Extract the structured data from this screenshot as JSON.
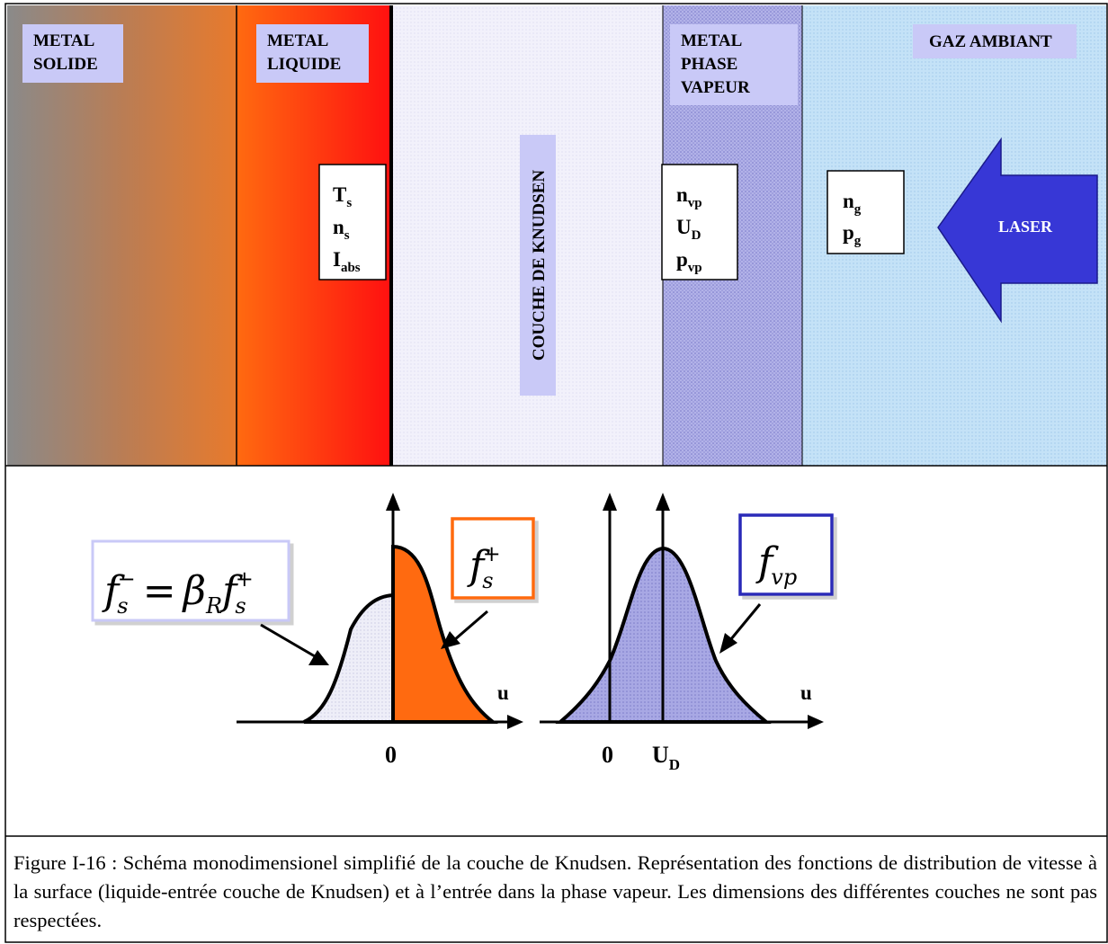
{
  "layers": {
    "solid": {
      "label_line1": "METAL",
      "label_line2": "SOLIDE"
    },
    "liquid": {
      "label_line1": "METAL",
      "label_line2": "LIQUIDE"
    },
    "knudsen": {
      "label": "COUCHE DE KNUDSEN"
    },
    "vapour": {
      "label_line1": "METAL",
      "label_line2": "PHASE",
      "label_line3": "VAPEUR"
    },
    "gas": {
      "label": "GAZ AMBIANT"
    }
  },
  "surface_vars": [
    {
      "base": "T",
      "sub": "s"
    },
    {
      "base": "n",
      "sub": "s"
    },
    {
      "base": "I",
      "sub": "abs"
    }
  ],
  "vapour_vars": [
    {
      "base": "n",
      "sub": "vp"
    },
    {
      "base": "U",
      "sub": "D"
    },
    {
      "base": "p",
      "sub": "vp"
    }
  ],
  "gas_vars": [
    {
      "base": "n",
      "sub": "g"
    },
    {
      "base": "p",
      "sub": "g"
    }
  ],
  "laser": {
    "label": "LASER"
  },
  "distributions": {
    "left": {
      "formula_f": "f",
      "formula_sub": "s",
      "formula_sup": "−",
      "formula_eq": "=",
      "formula_beta": "β",
      "formula_beta_sub": "R",
      "formula_f2": "f",
      "formula_f2_sub": "s",
      "formula_f2_sup": "+",
      "label_f": "f",
      "label_sub": "s",
      "label_sup": "+",
      "axis_label": "u",
      "origin_label": "0"
    },
    "right": {
      "label_f": "f",
      "label_sub": "vp",
      "axis_label": "u",
      "origin_label": "0",
      "drift_base": "U",
      "drift_sub": "D"
    }
  },
  "caption": "Figure I-16 : Schéma monodimensionel simplifié de la couche de Knudsen. Représentation des fonctions de distribution de vitesse à la surface (liquide-entrée couche de Knudsen) et à l’entrée dans la phase vapeur. Les dimensions des différentes couches ne sont pas respectées.",
  "colors": {
    "solid_start": "#8a8a8a",
    "solid_end": "#e87a2c",
    "liquid_start": "#ff6a10",
    "liquid_end": "#ff1a1a",
    "knudsen": "#f3f1fb",
    "vapour": "#a9a9e6",
    "gas": "#bcdcf5",
    "label_bg": "#c9c9f7",
    "laser": "#3737d6",
    "orange": "#ff6a10",
    "violet": "#9b9be3",
    "blue_border": "#2b2bb8"
  }
}
